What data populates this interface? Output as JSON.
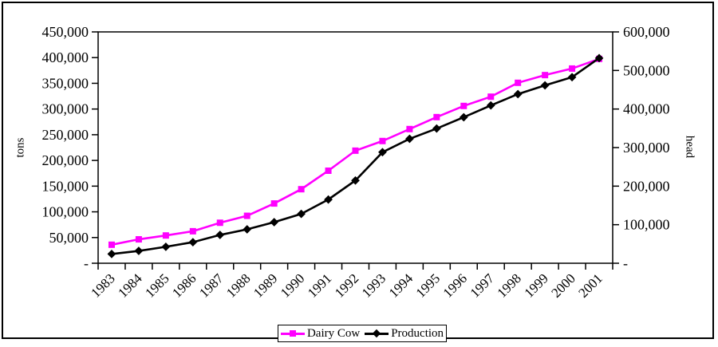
{
  "window": {
    "background": "#ffffff",
    "border_color": "#000000"
  },
  "chart_data": {
    "type": "line",
    "title": "",
    "categories": [
      "1983",
      "1984",
      "1985",
      "1986",
      "1987",
      "1988",
      "1989",
      "1990",
      "1991",
      "1992",
      "1993",
      "1994",
      "1995",
      "1996",
      "1997",
      "1998",
      "1999",
      "2000",
      "2001"
    ],
    "series": [
      {
        "name": "Dairy Cow",
        "axis": "right",
        "unit": "head",
        "color": "#ff00ff",
        "marker": "square",
        "values": [
          48000,
          62000,
          72000,
          83000,
          105000,
          123000,
          155000,
          192000,
          240000,
          292000,
          317000,
          348000,
          379000,
          408000,
          432000,
          468000,
          488000,
          505000,
          530000
        ]
      },
      {
        "name": "Production",
        "axis": "left",
        "unit": "tons",
        "color": "#000000",
        "marker": "diamond",
        "values": [
          18000,
          24000,
          32000,
          41000,
          55000,
          66000,
          80000,
          96000,
          124000,
          161000,
          216000,
          242000,
          262000,
          284000,
          307000,
          329000,
          346000,
          362000,
          399000
        ]
      }
    ],
    "left_axis": {
      "label": "tons",
      "min": 0,
      "max": 450000,
      "step": 50000,
      "tick_labels": [
        "-",
        "50,000",
        "100,000",
        "150,000",
        "200,000",
        "250,000",
        "300,000",
        "350,000",
        "400,000",
        "450,000"
      ]
    },
    "right_axis": {
      "label": "head",
      "min": 0,
      "max": 600000,
      "step": 100000,
      "tick_labels": [
        "-",
        "100,000",
        "200,000",
        "300,000",
        "400,000",
        "500,000",
        "600,000"
      ]
    },
    "grid": false,
    "legend_position": "bottom",
    "plot_background": "#ffffff"
  }
}
